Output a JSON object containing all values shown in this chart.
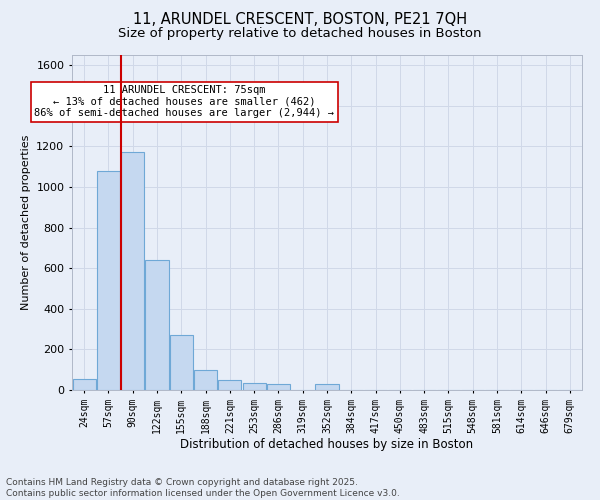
{
  "title_line1": "11, ARUNDEL CRESCENT, BOSTON, PE21 7QH",
  "title_line2": "Size of property relative to detached houses in Boston",
  "xlabel": "Distribution of detached houses by size in Boston",
  "ylabel": "Number of detached properties",
  "bin_labels": [
    "24sqm",
    "57sqm",
    "90sqm",
    "122sqm",
    "155sqm",
    "188sqm",
    "221sqm",
    "253sqm",
    "286sqm",
    "319sqm",
    "352sqm",
    "384sqm",
    "417sqm",
    "450sqm",
    "483sqm",
    "515sqm",
    "548sqm",
    "581sqm",
    "614sqm",
    "646sqm",
    "679sqm"
  ],
  "bar_heights": [
    55,
    1080,
    1170,
    640,
    270,
    100,
    50,
    35,
    30,
    0,
    30,
    0,
    0,
    0,
    0,
    0,
    0,
    0,
    0,
    0,
    0
  ],
  "bar_color": "#c5d8f0",
  "bar_edgecolor": "#6fa8d6",
  "bar_linewidth": 0.8,
  "vline_color": "#cc0000",
  "vline_linewidth": 1.5,
  "vline_pos": 1.5,
  "annotation_text": "11 ARUNDEL CRESCENT: 75sqm\n← 13% of detached houses are smaller (462)\n86% of semi-detached houses are larger (2,944) →",
  "annotation_box_edgecolor": "#cc0000",
  "annotation_box_facecolor": "#ffffff",
  "ylim": [
    0,
    1650
  ],
  "yticks": [
    0,
    200,
    400,
    600,
    800,
    1000,
    1200,
    1400,
    1600
  ],
  "grid_color": "#d0d8e8",
  "bg_color": "#e8eef8",
  "plot_bg_color": "#e8eef8",
  "footer_line1": "Contains HM Land Registry data © Crown copyright and database right 2025.",
  "footer_line2": "Contains public sector information licensed under the Open Government Licence v3.0.",
  "title_fontsize": 10.5,
  "subtitle_fontsize": 9.5,
  "annotation_fontsize": 7.5,
  "footer_fontsize": 6.5,
  "ylabel_fontsize": 8,
  "xlabel_fontsize": 8.5,
  "ytick_fontsize": 8,
  "xtick_fontsize": 7
}
